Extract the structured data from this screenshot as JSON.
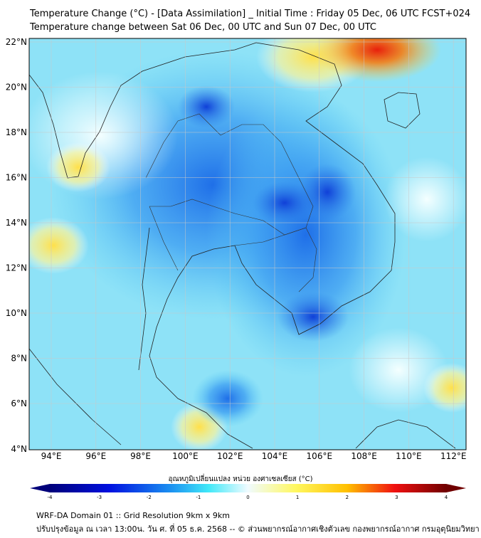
{
  "header": {
    "title": "Temperature Change (°C) - [Data Assimilation] _ Initial Time : Friday 05 Dec, 06 UTC FCST+024",
    "subtitle": "Temperature change between Sat 06 Dec, 00 UTC and Sun 07 Dec, 00 UTC"
  },
  "map": {
    "lat_labels": [
      "22°N",
      "20°N",
      "18°N",
      "16°N",
      "14°N",
      "12°N",
      "10°N",
      "8°N",
      "6°N",
      "4°N"
    ],
    "lon_labels": [
      "94°E",
      "96°E",
      "98°E",
      "100°E",
      "102°E",
      "104°E",
      "106°E",
      "108°E",
      "110°E",
      "112°E"
    ]
  },
  "colorbar": {
    "label": "อุณหภูมิเปลี่ยนแปลง หน่วย องศาเซลเซียส (°C)",
    "ticks": [
      "-4",
      "-3",
      "-2",
      "-1",
      "0",
      "1",
      "2",
      "3",
      "4"
    ],
    "range": [
      -4,
      4
    ]
  },
  "footer": {
    "line1": "WRF-DA Domain 01 :: Grid Resolution 9km x 9km",
    "line2": "ปรับปรุงข้อมูล ณ เวลา 13:00น. วัน ศ. ที่ 05 ธ.ค. 2568 -- © ส่วนพยากรณ์อากาศเชิงตัวเลข กองพยากรณ์อากาศ กรมอุตุนิยมวิทยา"
  }
}
